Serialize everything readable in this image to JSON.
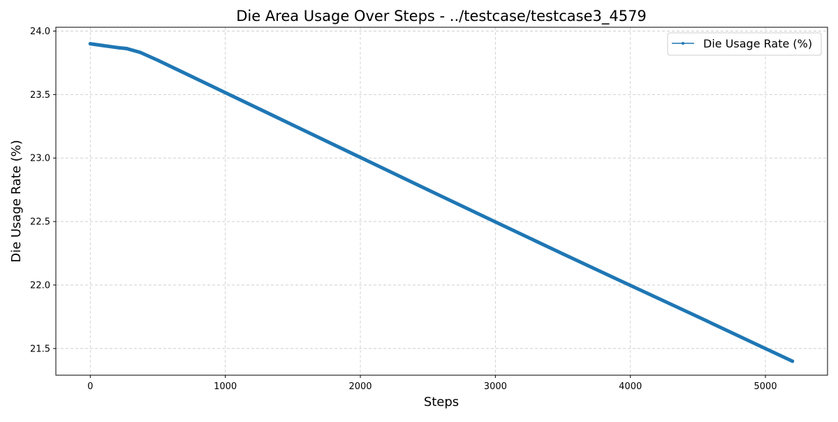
{
  "chart_data": {
    "type": "line",
    "title": "Die Area Usage Over Steps - ../testcase/testcase3_4579",
    "xlabel": "Steps",
    "ylabel": "Die Usage Rate (%)",
    "xlim": [
      -255,
      5460
    ],
    "ylim": [
      21.29,
      24.03
    ],
    "x_ticks": [
      0,
      1000,
      2000,
      3000,
      4000,
      5000
    ],
    "y_ticks": [
      21.5,
      22.0,
      22.5,
      23.0,
      23.5,
      24.0
    ],
    "x_tick_labels": [
      "0",
      "1000",
      "2000",
      "3000",
      "4000",
      "5000"
    ],
    "y_tick_labels": [
      "21.5",
      "22.0",
      "22.5",
      "23.0",
      "23.5",
      "24.0"
    ],
    "grid": true,
    "legend_position": "top-right",
    "series": [
      {
        "name": "Die Usage Rate (%)",
        "color": "#1f77b4",
        "marker": "circle",
        "x": [
          0,
          100,
          200,
          270,
          370,
          500,
          1000,
          1500,
          2000,
          2500,
          3000,
          3500,
          4000,
          4500,
          5000,
          5200
        ],
        "y": [
          23.9,
          23.885,
          23.87,
          23.862,
          23.832,
          23.77,
          23.515,
          23.26,
          23.005,
          22.75,
          22.497,
          22.245,
          21.997,
          21.75,
          21.5,
          21.4
        ]
      }
    ]
  }
}
